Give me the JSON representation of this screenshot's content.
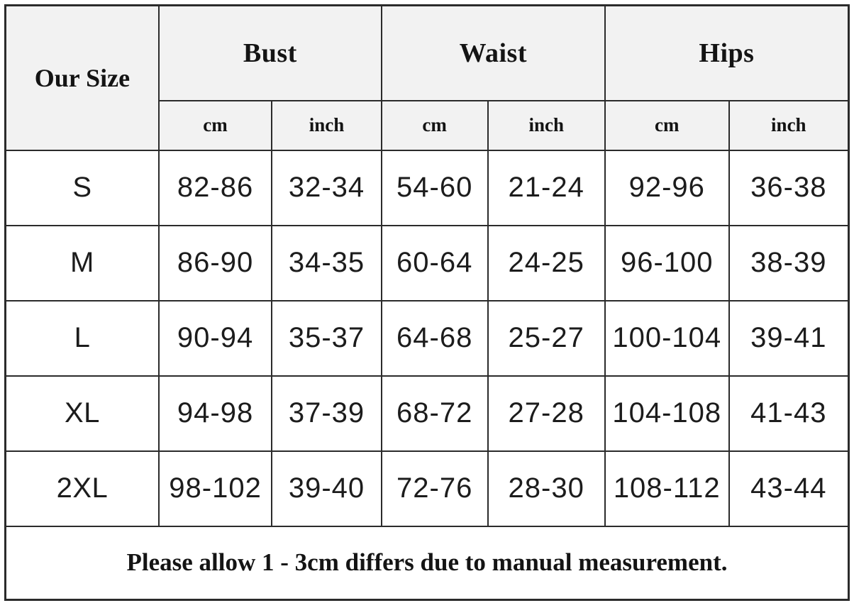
{
  "header": {
    "size_column_label": "Our Size",
    "groups": [
      {
        "label": "Bust"
      },
      {
        "label": "Waist"
      },
      {
        "label": "Hips"
      }
    ],
    "unit_cm": "cm",
    "unit_inch": "inch"
  },
  "chart_data": {
    "type": "table",
    "columns": [
      "Our Size",
      "Bust (cm)",
      "Bust (inch)",
      "Waist (cm)",
      "Waist (inch)",
      "Hips (cm)",
      "Hips (inch)"
    ],
    "rows": [
      [
        "S",
        "82-86",
        "32-34",
        "54-60",
        "21-24",
        "92-96",
        "36-38"
      ],
      [
        "M",
        "86-90",
        "34-35",
        "60-64",
        "24-25",
        "96-100",
        "38-39"
      ],
      [
        "L",
        "90-94",
        "35-37",
        "64-68",
        "25-27",
        "100-104",
        "39-41"
      ],
      [
        "XL",
        "94-98",
        "37-39",
        "68-72",
        "27-28",
        "104-108",
        "41-43"
      ],
      [
        "2XL",
        "98-102",
        "39-40",
        "72-76",
        "28-30",
        "108-112",
        "43-44"
      ]
    ]
  },
  "footnote": "Please allow 1 - 3cm differs due to manual measurement.",
  "colors": {
    "header_bg": "#f2f2f2",
    "body_bg": "#ffffff",
    "border": "#2b2b2b",
    "text": "#141414"
  }
}
